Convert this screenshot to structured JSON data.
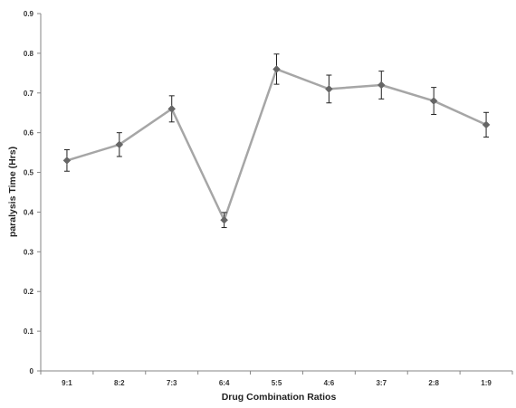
{
  "chart_data": {
    "type": "line",
    "title": "",
    "xlabel": "Drug Combination Ratios",
    "ylabel": "paralysis Time (Hrs)",
    "categories": [
      "9:1",
      "8:2",
      "7:3",
      "6:4",
      "5:5",
      "4:6",
      "3:7",
      "2:8",
      "1:9"
    ],
    "series": [
      {
        "values": [
          0.53,
          0.57,
          0.66,
          0.38,
          0.76,
          0.71,
          0.72,
          0.68,
          0.62
        ],
        "errors": [
          0.027,
          0.03,
          0.033,
          0.019,
          0.038,
          0.035,
          0.035,
          0.034,
          0.031
        ],
        "color": "#a6a6a6",
        "marker": "diamond",
        "marker_color": "#666666"
      }
    ],
    "ylim": [
      0,
      0.9
    ],
    "yticks": [
      "0",
      "0.1",
      "0.2",
      "0.3",
      "0.4",
      "0.5",
      "0.6",
      "0.7",
      "0.8",
      "0.9"
    ],
    "grid": false,
    "legend": "none"
  }
}
